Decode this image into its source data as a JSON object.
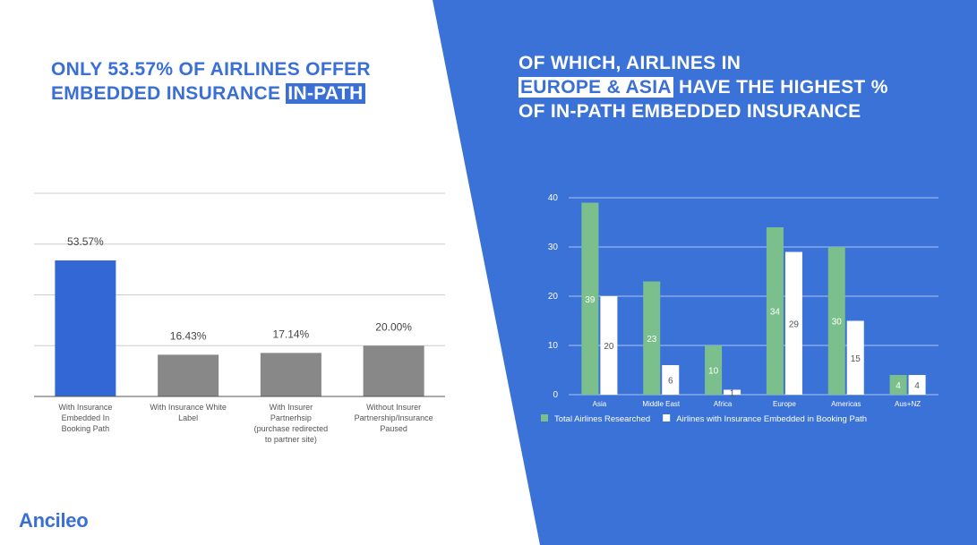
{
  "colors": {
    "brand_blue": "#3a6fd6",
    "panel_blue": "#3a72d8",
    "bar_blue": "#3367d6",
    "bar_gray": "#888888",
    "bar_green": "#7bc08c",
    "bar_white": "#ffffff"
  },
  "left_headline": {
    "line1": "ONLY 53.57% OF AIRLINES OFFER",
    "line2_prefix": "EMBEDDED INSURANCE ",
    "line2_highlight": "IN-PATH"
  },
  "right_headline": {
    "line1": "OF WHICH, AIRLINES IN",
    "line2_highlight": "EUROPE & ASIA",
    "line2_suffix": " HAVE THE HIGHEST %",
    "line3": "OF IN-PATH EMBEDDED INSURANCE"
  },
  "logo": {
    "text": "Ancileo"
  },
  "chart_data": [
    {
      "type": "bar",
      "title": "",
      "xlabel": "",
      "ylabel": "",
      "ylim": [
        0,
        80
      ],
      "grid": true,
      "categories": [
        [
          "With Insurance",
          "Embedded In",
          "Booking Path"
        ],
        [
          "With Insurance White",
          "Label"
        ],
        [
          "With Insurer",
          "Partnerhsip",
          "(purchase redirected",
          "to partner site)"
        ],
        [
          "Without Insurer",
          "Partnership/Insurance",
          "Paused"
        ]
      ],
      "values": [
        53.57,
        16.43,
        17.14,
        20.0
      ],
      "data_labels": [
        "53.57%",
        "16.43%",
        "17.14%",
        "20.00%"
      ],
      "bar_colors": [
        "#3367d6",
        "#888888",
        "#888888",
        "#888888"
      ]
    },
    {
      "type": "bar",
      "title": "",
      "xlabel": "",
      "ylabel": "",
      "ylim": [
        0,
        40
      ],
      "y_ticks": [
        "0",
        "10",
        "20",
        "30",
        "40"
      ],
      "grid": true,
      "legend_position": "bottom",
      "categories": [
        "Asia",
        "Middle East",
        "Africa",
        "Europe",
        "Americas",
        "Aus+NZ"
      ],
      "series": [
        {
          "name": "Total Airlines Researched",
          "color": "#7bc08c",
          "values": [
            39,
            23,
            10,
            34,
            30,
            4
          ]
        },
        {
          "name": "Airlines with Insurance Embedded in Booking Path",
          "color": "#ffffff",
          "values": [
            20,
            6,
            1,
            29,
            15,
            4
          ]
        }
      ]
    }
  ]
}
